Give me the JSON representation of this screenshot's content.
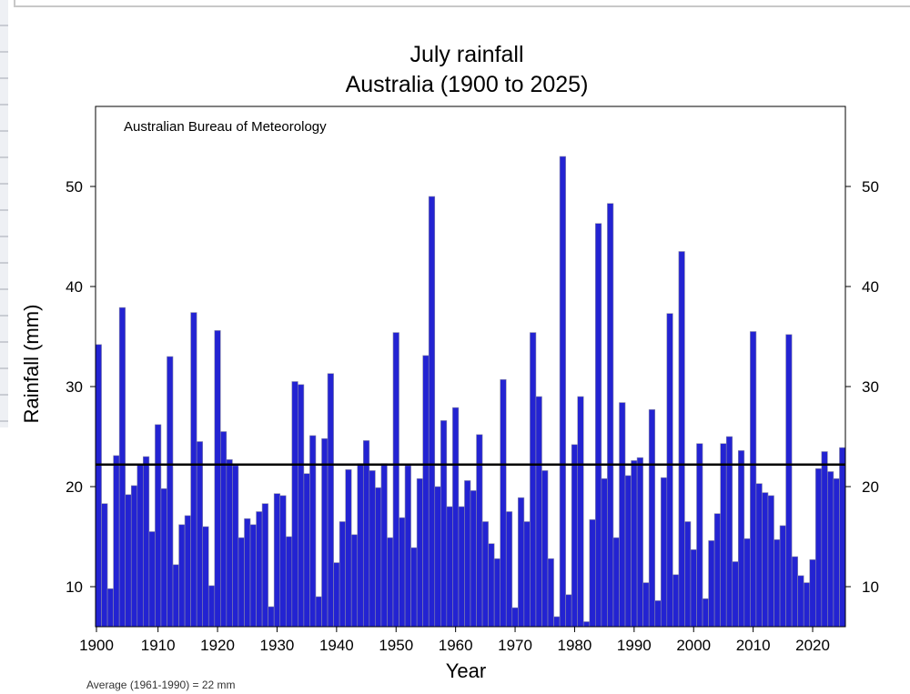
{
  "chart_data": {
    "type": "bar",
    "title": "July rainfall",
    "subtitle": "Australia (1900 to 2025)",
    "xlabel": "Year",
    "ylabel": "Rainfall (mm)",
    "credit": "Australian Bureau of Meteorology",
    "footnote": "Average (1961-1990) = 22 mm",
    "average": 22.2,
    "ylim": [
      6,
      58
    ],
    "xlim": [
      1900,
      2025
    ],
    "x_ticks": [
      1900,
      1910,
      1920,
      1930,
      1940,
      1950,
      1960,
      1970,
      1980,
      1990,
      2000,
      2010,
      2020
    ],
    "y_ticks": [
      10,
      20,
      30,
      40,
      50
    ],
    "grid": false,
    "bar_color": "#2323d2",
    "bar_edge_color": "#8a8aa8",
    "start_year": 1900,
    "values": [
      34.2,
      18.3,
      9.8,
      23.1,
      37.9,
      19.2,
      20.1,
      22.2,
      23.0,
      15.5,
      26.2,
      19.8,
      33.0,
      12.2,
      16.2,
      17.1,
      37.4,
      24.5,
      16.0,
      10.1,
      35.6,
      25.5,
      22.7,
      22.1,
      14.9,
      16.8,
      16.2,
      17.5,
      18.3,
      8.0,
      19.3,
      19.1,
      15.0,
      30.5,
      30.2,
      21.3,
      25.1,
      9.0,
      24.8,
      31.3,
      12.4,
      16.5,
      21.7,
      15.2,
      22.3,
      24.6,
      21.6,
      19.9,
      22.3,
      14.9,
      35.4,
      16.9,
      22.1,
      13.9,
      20.8,
      33.1,
      49.0,
      20.0,
      26.6,
      18.0,
      27.9,
      18.0,
      20.6,
      19.6,
      25.2,
      16.5,
      14.3,
      12.8,
      30.7,
      17.5,
      7.9,
      18.9,
      16.5,
      35.4,
      29.0,
      21.6,
      12.8,
      7.0,
      53.0,
      9.2,
      24.2,
      29.0,
      6.5,
      16.7,
      46.3,
      20.8,
      48.3,
      14.9,
      28.4,
      21.1,
      22.6,
      22.9,
      10.4,
      27.7,
      8.6,
      20.9,
      37.3,
      11.2,
      43.5,
      16.5,
      13.7,
      24.3,
      8.8,
      14.6,
      17.3,
      24.3,
      25.0,
      12.5,
      23.6,
      14.8,
      35.5,
      20.3,
      19.4,
      19.1,
      14.7,
      16.1,
      35.2,
      13.0,
      11.1,
      10.4,
      12.7,
      21.8,
      23.5,
      21.5,
      20.8,
      23.9
    ]
  }
}
